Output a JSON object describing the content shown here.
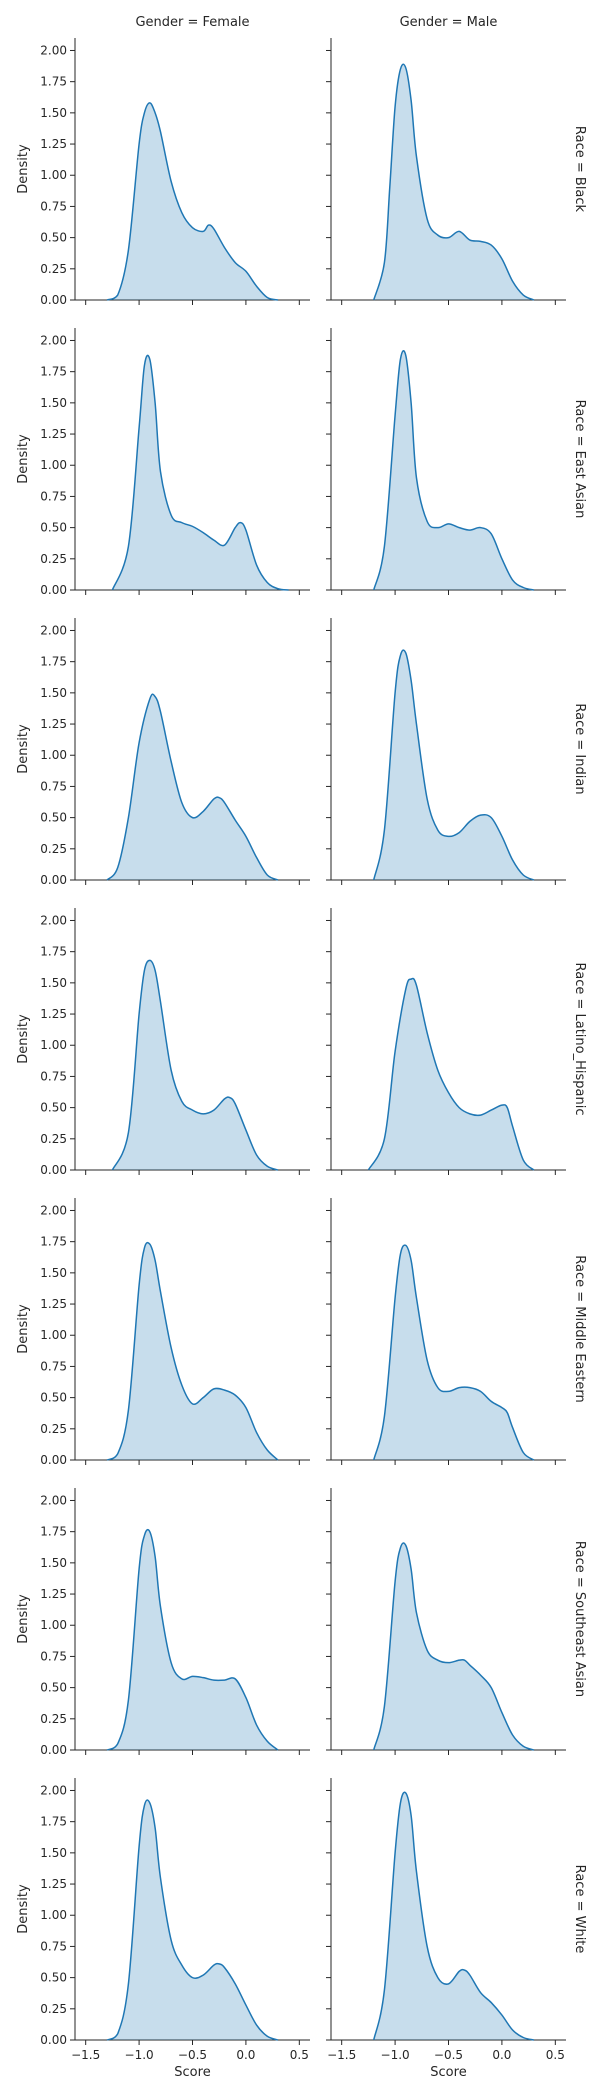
{
  "chart_data": {
    "type": "area",
    "subtype": "kde-facet-grid",
    "columns": [
      "Gender = Female",
      "Gender = Male"
    ],
    "rows": [
      "Race = Black",
      "Race = East Asian",
      "Race = Indian",
      "Race = Latino_Hispanic",
      "Race = Middle Eastern",
      "Race = Southeast Asian",
      "Race = White"
    ],
    "xlabel": "Score",
    "ylabel": "Density",
    "xlim": [
      -1.6,
      0.6
    ],
    "ylim": [
      0,
      2.1
    ],
    "xticks": [
      -1.5,
      -1.0,
      -0.5,
      0.0,
      0.5
    ],
    "xtick_labels": [
      "−1.5",
      "−1.0",
      "−0.5",
      "0.0",
      "0.5"
    ],
    "yticks": [
      0,
      0.25,
      0.5,
      0.75,
      1.0,
      1.25,
      1.5,
      1.75,
      2.0
    ],
    "ytick_labels": [
      "0.00",
      "0.25",
      "0.50",
      "0.75",
      "1.00",
      "1.25",
      "1.50",
      "1.75",
      "2.00"
    ],
    "colors": {
      "line": "#1f77b4",
      "fill": "#1f77b4",
      "fill_opacity": 0.25,
      "axis": "#262626"
    },
    "grid": false,
    "panels": [
      {
        "row": 0,
        "col": 0,
        "x": [
          -1.3,
          -1.2,
          -1.1,
          -1.0,
          -0.95,
          -0.9,
          -0.85,
          -0.8,
          -0.7,
          -0.6,
          -0.5,
          -0.4,
          -0.35,
          -0.3,
          -0.2,
          -0.1,
          0.0,
          0.1,
          0.2,
          0.3
        ],
        "y": [
          0.0,
          0.04,
          0.4,
          1.25,
          1.5,
          1.58,
          1.5,
          1.35,
          0.95,
          0.7,
          0.58,
          0.55,
          0.6,
          0.57,
          0.42,
          0.3,
          0.23,
          0.11,
          0.02,
          0.0
        ]
      },
      {
        "row": 0,
        "col": 1,
        "x": [
          -1.2,
          -1.1,
          -1.05,
          -1.0,
          -0.95,
          -0.9,
          -0.85,
          -0.8,
          -0.7,
          -0.6,
          -0.5,
          -0.4,
          -0.3,
          -0.2,
          -0.1,
          0.0,
          0.1,
          0.2,
          0.3
        ],
        "y": [
          0.0,
          0.3,
          0.9,
          1.55,
          1.85,
          1.86,
          1.6,
          1.15,
          0.65,
          0.52,
          0.5,
          0.55,
          0.48,
          0.47,
          0.44,
          0.33,
          0.15,
          0.04,
          0.0
        ]
      },
      {
        "row": 1,
        "col": 0,
        "x": [
          -1.25,
          -1.1,
          -1.0,
          -0.95,
          -0.9,
          -0.85,
          -0.8,
          -0.7,
          -0.6,
          -0.5,
          -0.4,
          -0.3,
          -0.2,
          -0.1,
          -0.05,
          0.0,
          0.1,
          0.2,
          0.3,
          0.4
        ],
        "y": [
          0.0,
          0.35,
          1.3,
          1.8,
          1.85,
          1.5,
          0.95,
          0.6,
          0.54,
          0.51,
          0.46,
          0.4,
          0.36,
          0.5,
          0.54,
          0.48,
          0.2,
          0.06,
          0.01,
          0.0
        ]
      },
      {
        "row": 1,
        "col": 1,
        "x": [
          -1.2,
          -1.1,
          -1.0,
          -0.95,
          -0.9,
          -0.85,
          -0.8,
          -0.7,
          -0.6,
          -0.5,
          -0.4,
          -0.3,
          -0.2,
          -0.1,
          0.0,
          0.1,
          0.2,
          0.3
        ],
        "y": [
          0.0,
          0.35,
          1.4,
          1.85,
          1.88,
          1.5,
          0.9,
          0.55,
          0.5,
          0.53,
          0.5,
          0.48,
          0.5,
          0.45,
          0.25,
          0.08,
          0.02,
          0.0
        ]
      },
      {
        "row": 2,
        "col": 0,
        "x": [
          -1.3,
          -1.2,
          -1.1,
          -1.0,
          -0.9,
          -0.85,
          -0.8,
          -0.7,
          -0.6,
          -0.5,
          -0.4,
          -0.3,
          -0.25,
          -0.2,
          -0.1,
          0.0,
          0.1,
          0.2,
          0.3
        ],
        "y": [
          0.0,
          0.1,
          0.5,
          1.1,
          1.45,
          1.47,
          1.35,
          0.95,
          0.62,
          0.5,
          0.55,
          0.65,
          0.66,
          0.62,
          0.48,
          0.35,
          0.18,
          0.04,
          0.0
        ]
      },
      {
        "row": 2,
        "col": 1,
        "x": [
          -1.2,
          -1.1,
          -1.0,
          -0.95,
          -0.9,
          -0.85,
          -0.8,
          -0.7,
          -0.6,
          -0.5,
          -0.4,
          -0.3,
          -0.2,
          -0.1,
          0.0,
          0.1,
          0.2,
          0.3
        ],
        "y": [
          0.0,
          0.4,
          1.5,
          1.8,
          1.82,
          1.6,
          1.25,
          0.65,
          0.4,
          0.35,
          0.38,
          0.47,
          0.52,
          0.5,
          0.35,
          0.16,
          0.04,
          0.0
        ]
      },
      {
        "row": 3,
        "col": 0,
        "x": [
          -1.25,
          -1.1,
          -1.0,
          -0.95,
          -0.9,
          -0.85,
          -0.8,
          -0.7,
          -0.6,
          -0.5,
          -0.4,
          -0.3,
          -0.2,
          -0.15,
          -0.1,
          0.0,
          0.1,
          0.2,
          0.3
        ],
        "y": [
          0.0,
          0.3,
          1.25,
          1.6,
          1.68,
          1.6,
          1.35,
          0.8,
          0.55,
          0.48,
          0.45,
          0.48,
          0.57,
          0.58,
          0.53,
          0.32,
          0.12,
          0.03,
          0.0
        ]
      },
      {
        "row": 3,
        "col": 1,
        "x": [
          -1.25,
          -1.1,
          -1.0,
          -0.9,
          -0.85,
          -0.8,
          -0.7,
          -0.6,
          -0.5,
          -0.4,
          -0.3,
          -0.2,
          -0.1,
          0.0,
          0.05,
          0.1,
          0.2,
          0.3
        ],
        "y": [
          0.0,
          0.25,
          0.95,
          1.45,
          1.53,
          1.48,
          1.1,
          0.8,
          0.62,
          0.5,
          0.45,
          0.44,
          0.48,
          0.52,
          0.5,
          0.35,
          0.08,
          0.0
        ]
      },
      {
        "row": 4,
        "col": 0,
        "x": [
          -1.3,
          -1.2,
          -1.1,
          -1.0,
          -0.95,
          -0.9,
          -0.85,
          -0.8,
          -0.7,
          -0.6,
          -0.5,
          -0.4,
          -0.3,
          -0.2,
          -0.1,
          0.0,
          0.1,
          0.2,
          0.3
        ],
        "y": [
          0.0,
          0.05,
          0.4,
          1.4,
          1.7,
          1.73,
          1.6,
          1.35,
          0.9,
          0.6,
          0.45,
          0.5,
          0.57,
          0.56,
          0.52,
          0.42,
          0.22,
          0.08,
          0.0
        ]
      },
      {
        "row": 4,
        "col": 1,
        "x": [
          -1.2,
          -1.1,
          -1.0,
          -0.95,
          -0.9,
          -0.85,
          -0.8,
          -0.7,
          -0.6,
          -0.5,
          -0.4,
          -0.3,
          -0.2,
          -0.1,
          0.0,
          0.05,
          0.1,
          0.2,
          0.3
        ],
        "y": [
          0.0,
          0.35,
          1.3,
          1.65,
          1.72,
          1.6,
          1.3,
          0.8,
          0.58,
          0.55,
          0.58,
          0.58,
          0.55,
          0.47,
          0.42,
          0.38,
          0.26,
          0.06,
          0.0
        ]
      },
      {
        "row": 5,
        "col": 0,
        "x": [
          -1.3,
          -1.2,
          -1.1,
          -1.0,
          -0.95,
          -0.9,
          -0.85,
          -0.8,
          -0.7,
          -0.6,
          -0.5,
          -0.4,
          -0.3,
          -0.2,
          -0.1,
          0.0,
          0.1,
          0.2,
          0.3
        ],
        "y": [
          0.0,
          0.05,
          0.4,
          1.45,
          1.72,
          1.75,
          1.55,
          1.15,
          0.7,
          0.57,
          0.59,
          0.58,
          0.56,
          0.56,
          0.57,
          0.42,
          0.2,
          0.07,
          0.0
        ]
      },
      {
        "row": 5,
        "col": 1,
        "x": [
          -1.2,
          -1.1,
          -1.0,
          -0.95,
          -0.9,
          -0.85,
          -0.8,
          -0.7,
          -0.6,
          -0.5,
          -0.4,
          -0.35,
          -0.3,
          -0.2,
          -0.1,
          0.0,
          0.1,
          0.2,
          0.3
        ],
        "y": [
          0.0,
          0.35,
          1.35,
          1.62,
          1.64,
          1.45,
          1.1,
          0.8,
          0.72,
          0.7,
          0.72,
          0.72,
          0.68,
          0.6,
          0.5,
          0.3,
          0.12,
          0.03,
          0.0
        ]
      },
      {
        "row": 6,
        "col": 0,
        "x": [
          -1.3,
          -1.2,
          -1.1,
          -1.0,
          -0.95,
          -0.9,
          -0.85,
          -0.8,
          -0.7,
          -0.6,
          -0.5,
          -0.4,
          -0.3,
          -0.25,
          -0.2,
          -0.1,
          0.0,
          0.1,
          0.2,
          0.3
        ],
        "y": [
          0.0,
          0.05,
          0.45,
          1.55,
          1.88,
          1.9,
          1.7,
          1.3,
          0.8,
          0.6,
          0.5,
          0.52,
          0.6,
          0.61,
          0.58,
          0.45,
          0.28,
          0.12,
          0.03,
          0.0
        ]
      },
      {
        "row": 6,
        "col": 1,
        "x": [
          -1.2,
          -1.1,
          -1.0,
          -0.95,
          -0.9,
          -0.85,
          -0.8,
          -0.7,
          -0.6,
          -0.5,
          -0.4,
          -0.35,
          -0.3,
          -0.2,
          -0.1,
          0.0,
          0.1,
          0.2,
          0.3
        ],
        "y": [
          0.0,
          0.4,
          1.5,
          1.9,
          1.98,
          1.8,
          1.35,
          0.75,
          0.5,
          0.45,
          0.55,
          0.56,
          0.52,
          0.38,
          0.3,
          0.2,
          0.08,
          0.02,
          0.0
        ]
      }
    ]
  }
}
